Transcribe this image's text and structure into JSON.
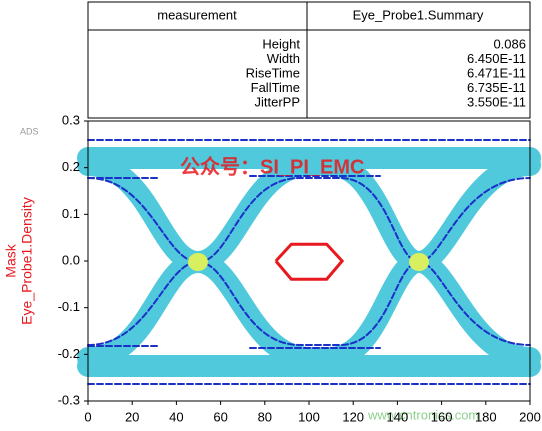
{
  "table": {
    "header": [
      "measurement",
      "Eye_Probe1.Summary"
    ],
    "rows": [
      [
        "Height",
        "0.086"
      ],
      [
        "Width",
        "6.450E-11"
      ],
      [
        "RiseTime",
        "6.471E-11"
      ],
      [
        "FallTime",
        "6.735E-11"
      ],
      [
        "JitterPP",
        "3.550E-11"
      ]
    ]
  },
  "chart_data": {
    "type": "line",
    "ylabel": "Eye_Probe1.Density",
    "series": [
      {
        "name": "Mask",
        "color": "#e8191e",
        "x": [
          85,
          92,
          108,
          115,
          108,
          92,
          85
        ],
        "values": [
          0,
          0.036,
          0.036,
          0,
          -0.039,
          -0.039,
          0
        ]
      }
    ],
    "xlim": [
      0,
      200
    ],
    "xticks": [
      0,
      20,
      40,
      60,
      80,
      100,
      120,
      140,
      160,
      180,
      200
    ],
    "ylim": [
      -0.3,
      0.3
    ],
    "yticks": [
      -0.3,
      -0.2,
      -0.1,
      {
        "value": 0,
        "label": "0.0"
      },
      0.1,
      0.2,
      0.3
    ]
  },
  "annotations": {
    "logo": "ADS",
    "watermark": "公众号：SI_PI_EMC",
    "site": "www.cntronics.com"
  }
}
